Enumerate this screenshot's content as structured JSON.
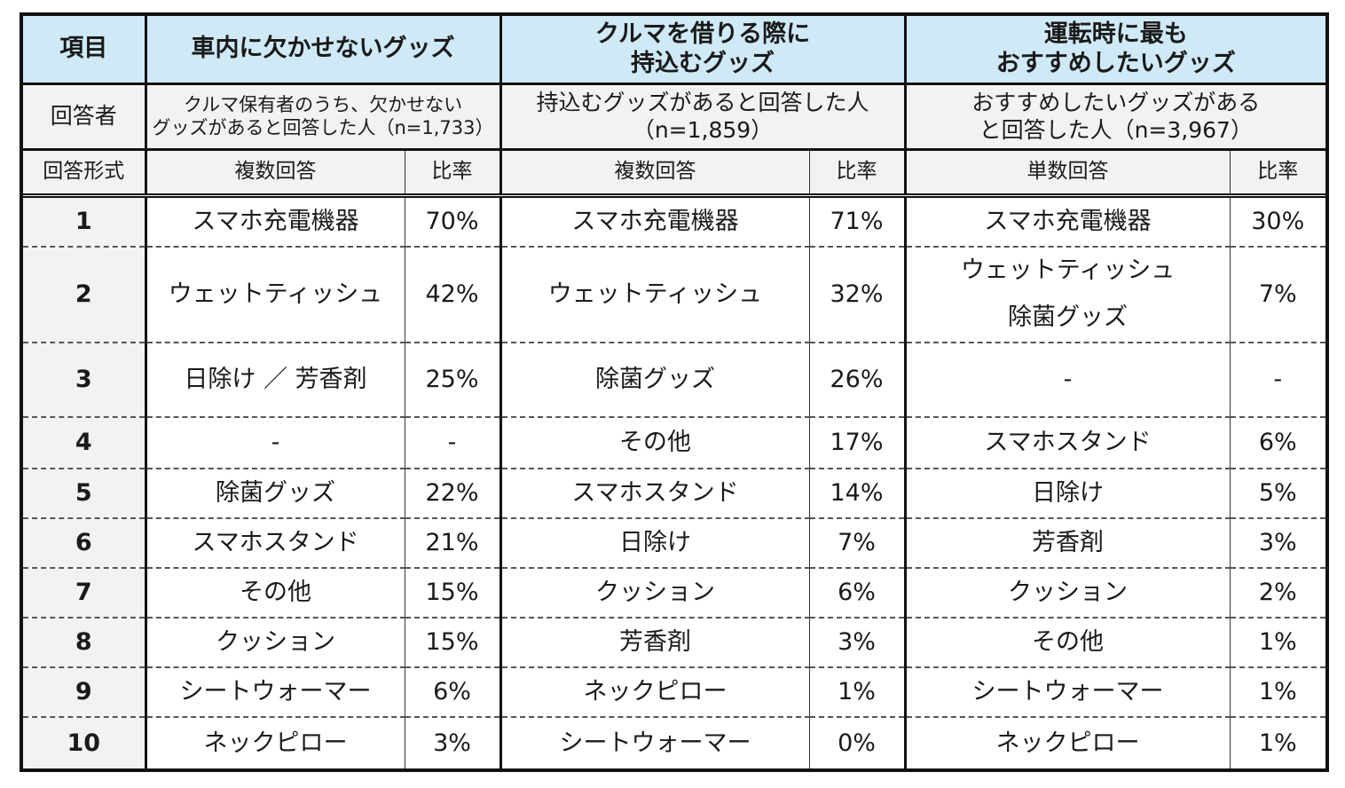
{
  "header": {
    "item_label": "項目",
    "columns": [
      {
        "title": "車内に欠かせないグッズ"
      },
      {
        "title_line1": "クルマを借りる際に",
        "title_line2": "持込むグッズ"
      },
      {
        "title_line1": "運転時に最も",
        "title_line2": "おすすめしたいグッズ"
      }
    ]
  },
  "respondents": {
    "label": "回答者",
    "col1_line1": "クルマ保有者のうち、欠かせない",
    "col1_line2": "グッズがあると回答した人（n=1,733）",
    "col2_line1": "持込むグッズがあると回答した人",
    "col2_line2": "（n=1,859）",
    "col3_line1": "おすすめしたいグッズがある",
    "col3_line2": "と回答した人（n=3,967）"
  },
  "format": {
    "label": "回答形式",
    "col1_type": "複数回答",
    "col1_ratio": "比率",
    "col2_type": "複数回答",
    "col2_ratio": "比率",
    "col3_type": "単数回答",
    "col3_ratio": "比率"
  },
  "rows": [
    {
      "rank": "1",
      "a": "スマホ充電機器",
      "ap": "70%",
      "b": "スマホ充電機器",
      "bp": "71%",
      "c": "スマホ充電機器",
      "cp": "30%"
    },
    {
      "rank": "2",
      "a": "ウェットティッシュ",
      "ap": "42%",
      "b": "ウェットティッシュ",
      "bp": "32%",
      "c1": "ウェットティッシュ",
      "c2": "除菌グッズ",
      "cp": "7%"
    },
    {
      "rank": "3",
      "a": "日除け ／ 芳香剤",
      "ap": "25%",
      "b": "除菌グッズ",
      "bp": "26%",
      "c": "-",
      "cp": "-"
    },
    {
      "rank": "4",
      "a": "-",
      "ap": "-",
      "b": "その他",
      "bp": "17%",
      "c": "スマホスタンド",
      "cp": "6%"
    },
    {
      "rank": "5",
      "a": "除菌グッズ",
      "ap": "22%",
      "b": "スマホスタンド",
      "bp": "14%",
      "c": "日除け",
      "cp": "5%"
    },
    {
      "rank": "6",
      "a": "スマホスタンド",
      "ap": "21%",
      "b": "日除け",
      "bp": "7%",
      "c": "芳香剤",
      "cp": "3%"
    },
    {
      "rank": "7",
      "a": "その他",
      "ap": "15%",
      "b": "クッション",
      "bp": "6%",
      "c": "クッション",
      "cp": "2%"
    },
    {
      "rank": "8",
      "a": "クッション",
      "ap": "15%",
      "b": "芳香剤",
      "bp": "3%",
      "c": "その他",
      "cp": "1%"
    },
    {
      "rank": "9",
      "a": "シートウォーマー",
      "ap": "6%",
      "b": "ネックピロー",
      "bp": "1%",
      "c": "シートウォーマー",
      "cp": "1%"
    },
    {
      "rank": "10",
      "a": "ネックピロー",
      "ap": "3%",
      "b": "シートウォーマー",
      "bp": "0%",
      "c": "ネックピロー",
      "cp": "1%"
    }
  ],
  "colors": {
    "header_bg": "#cfeaf6",
    "subheader_bg": "#f2f2f2",
    "border": "#111111"
  }
}
